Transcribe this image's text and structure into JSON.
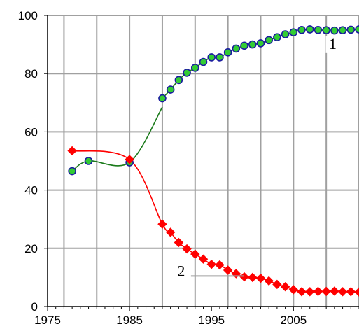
{
  "chart_data": {
    "type": "line",
    "title": "",
    "xlabel": "",
    "ylabel": "",
    "xlim": [
      1975,
      2013
    ],
    "ylim": [
      0,
      100
    ],
    "grid": true,
    "x_ticks": [
      1975,
      1985,
      1995,
      2005
    ],
    "y_ticks": [
      0,
      20,
      40,
      60,
      80,
      100
    ],
    "x_tick_labels": [
      "1975",
      "1985",
      "1995",
      "2005"
    ],
    "y_tick_labels": [
      "0",
      "20",
      "40",
      "60",
      "80",
      "100"
    ],
    "series": [
      {
        "label": "1",
        "color": "#1a7a1a",
        "marker_fill": "#33cc33",
        "marker_edge": "#1a1aa0",
        "marker": "circle",
        "x": [
          1978,
          1980,
          1985,
          1989,
          1990,
          1991,
          1992,
          1993,
          1994,
          1995,
          1996,
          1997,
          1998,
          1999,
          2000,
          2001,
          2002,
          2003,
          2004,
          2005,
          2006,
          2007,
          2008,
          2009,
          2010,
          2011,
          2012,
          2013
        ],
        "y": [
          46.5,
          50,
          49.5,
          71.5,
          74.5,
          77.8,
          80.3,
          82,
          84,
          85.6,
          85.6,
          87.3,
          88.6,
          89.6,
          90,
          90.4,
          91.5,
          92.5,
          93.5,
          94.2,
          95,
          95.2,
          95,
          94.9,
          94.8,
          94.9,
          95.1,
          95.2
        ],
        "bridge": {
          "from": [
            1985,
            49
          ],
          "to": [
            1989,
            68.5
          ]
        }
      },
      {
        "label": "2",
        "color": "#ff0000",
        "marker_fill": "#ff0000",
        "marker_edge": "#ff0000",
        "marker": "diamond",
        "x": [
          1978,
          1985,
          1989,
          1990,
          1991,
          1992,
          1993,
          1994,
          1995,
          1996,
          1997,
          1998,
          1999,
          2000,
          2001,
          2002,
          2003,
          2004,
          2005,
          2006,
          2007,
          2008,
          2009,
          2010,
          2011,
          2012,
          2013
        ],
        "y": [
          53.5,
          50.5,
          28.3,
          25.5,
          22,
          19.8,
          18,
          16.3,
          14.5,
          14.3,
          12.5,
          11.3,
          10.2,
          10,
          9.7,
          8.8,
          7.6,
          6.8,
          5.8,
          5.1,
          5.1,
          5.2,
          5.2,
          5.3,
          5.1,
          5.1,
          5
        ]
      }
    ]
  }
}
